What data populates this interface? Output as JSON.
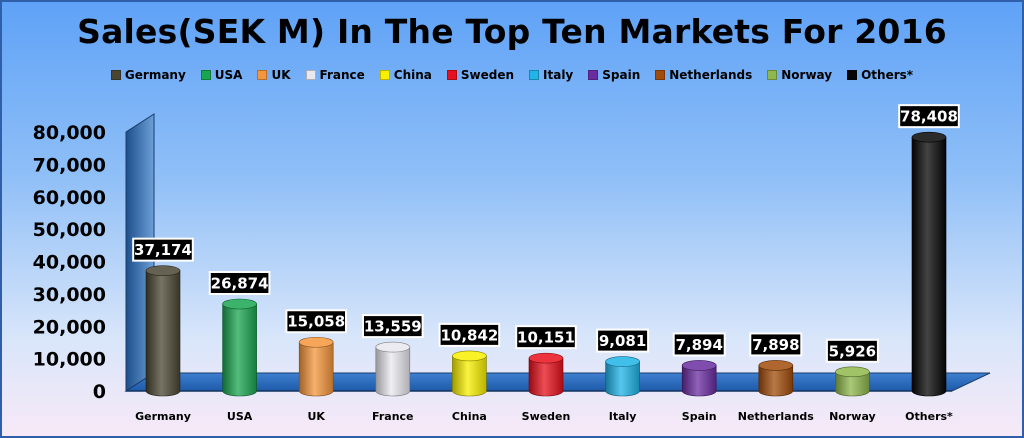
{
  "chart_data": {
    "type": "bar",
    "title": "Sales(SEK M) In The Top Ten Markets For 2016",
    "categories": [
      "Germany",
      "USA",
      "UK",
      "France",
      "China",
      "Sweden",
      "Italy",
      "Spain",
      "Netherlands",
      "Norway",
      "Others*"
    ],
    "values": [
      37174,
      26874,
      15058,
      13559,
      10842,
      10151,
      9081,
      7894,
      7898,
      5926,
      78408
    ],
    "data_labels": [
      "37,174",
      "26,874",
      "15,058",
      "13,559",
      "10,842",
      "10,151",
      "9,081",
      "7,894",
      "7,898",
      "5,926",
      "78,408"
    ],
    "colors": [
      "#4a4632",
      "#1aa550",
      "#f5963c",
      "#e8e8ef",
      "#f8f000",
      "#e8101c",
      "#20b4e8",
      "#6a2ca0",
      "#a24c0a",
      "#8fb84c",
      "#050505"
    ],
    "y_ticks": [
      "0",
      "10,000",
      "20,000",
      "30,000",
      "40,000",
      "50,000",
      "60,000",
      "70,000",
      "80,000"
    ],
    "ylim": [
      0,
      80000
    ],
    "legend_position": "top",
    "xlabel": "",
    "ylabel": ""
  }
}
